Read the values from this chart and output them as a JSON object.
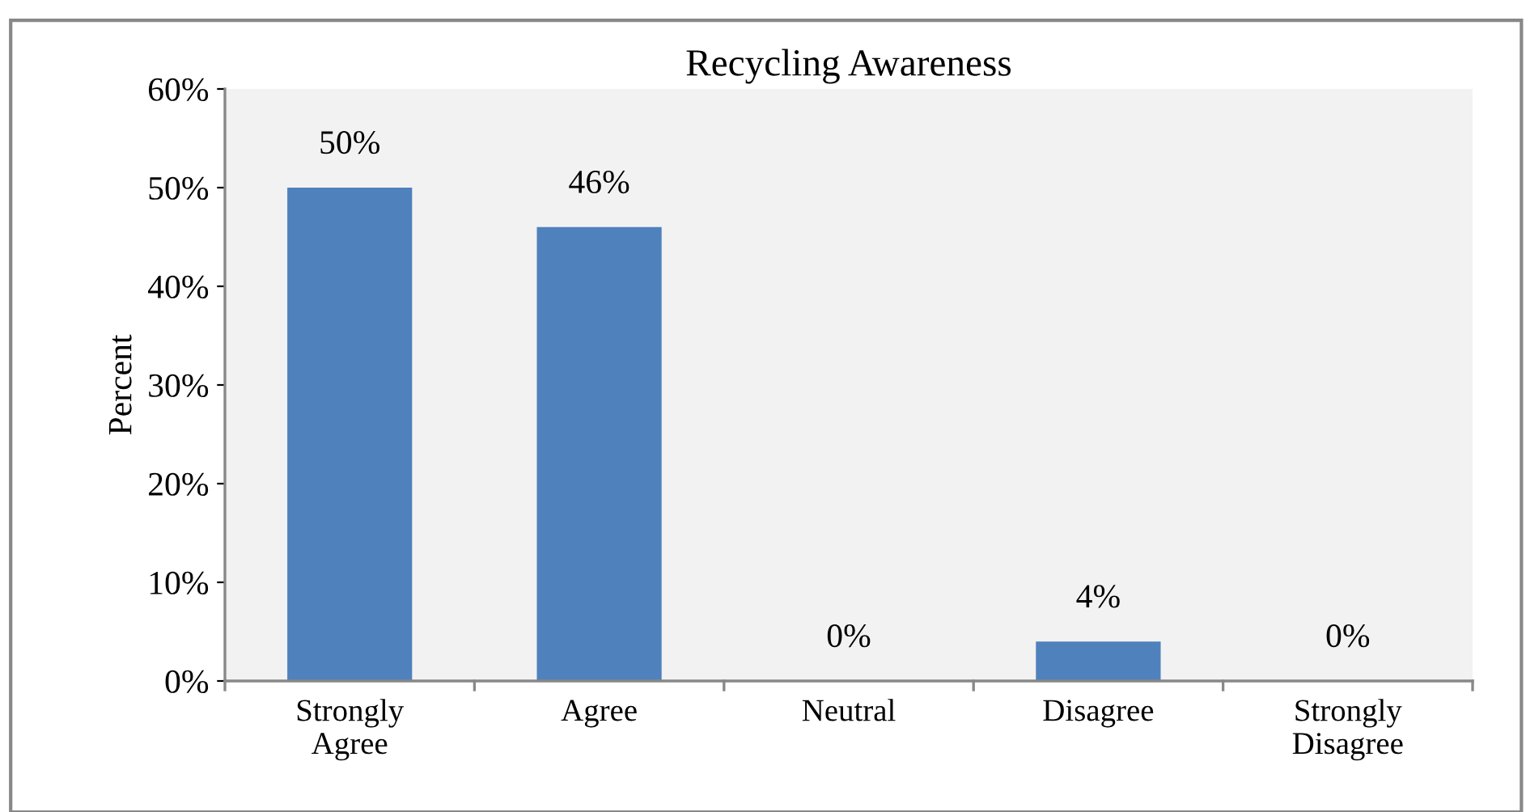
{
  "chart_data": {
    "type": "bar",
    "title": "Recycling Awareness",
    "ylabel": "Percent",
    "categories": [
      "Strongly\nAgree",
      "Agree",
      "Neutral",
      "Disagree",
      "Strongly\nDisagree"
    ],
    "values": [
      50,
      46,
      0,
      4,
      0
    ],
    "value_labels": [
      "50%",
      "46%",
      "0%",
      "4%",
      "0%"
    ],
    "color": "#4f81bd",
    "ylim": [
      0,
      60
    ],
    "yticks": [
      {
        "value": 0,
        "label": "0%"
      },
      {
        "value": 10,
        "label": "10%"
      },
      {
        "value": 20,
        "label": "20%"
      },
      {
        "value": 30,
        "label": "30%"
      },
      {
        "value": 40,
        "label": "40%"
      },
      {
        "value": 50,
        "label": "50%"
      },
      {
        "value": 60,
        "label": "60%"
      }
    ],
    "grid": false,
    "legend": false
  }
}
